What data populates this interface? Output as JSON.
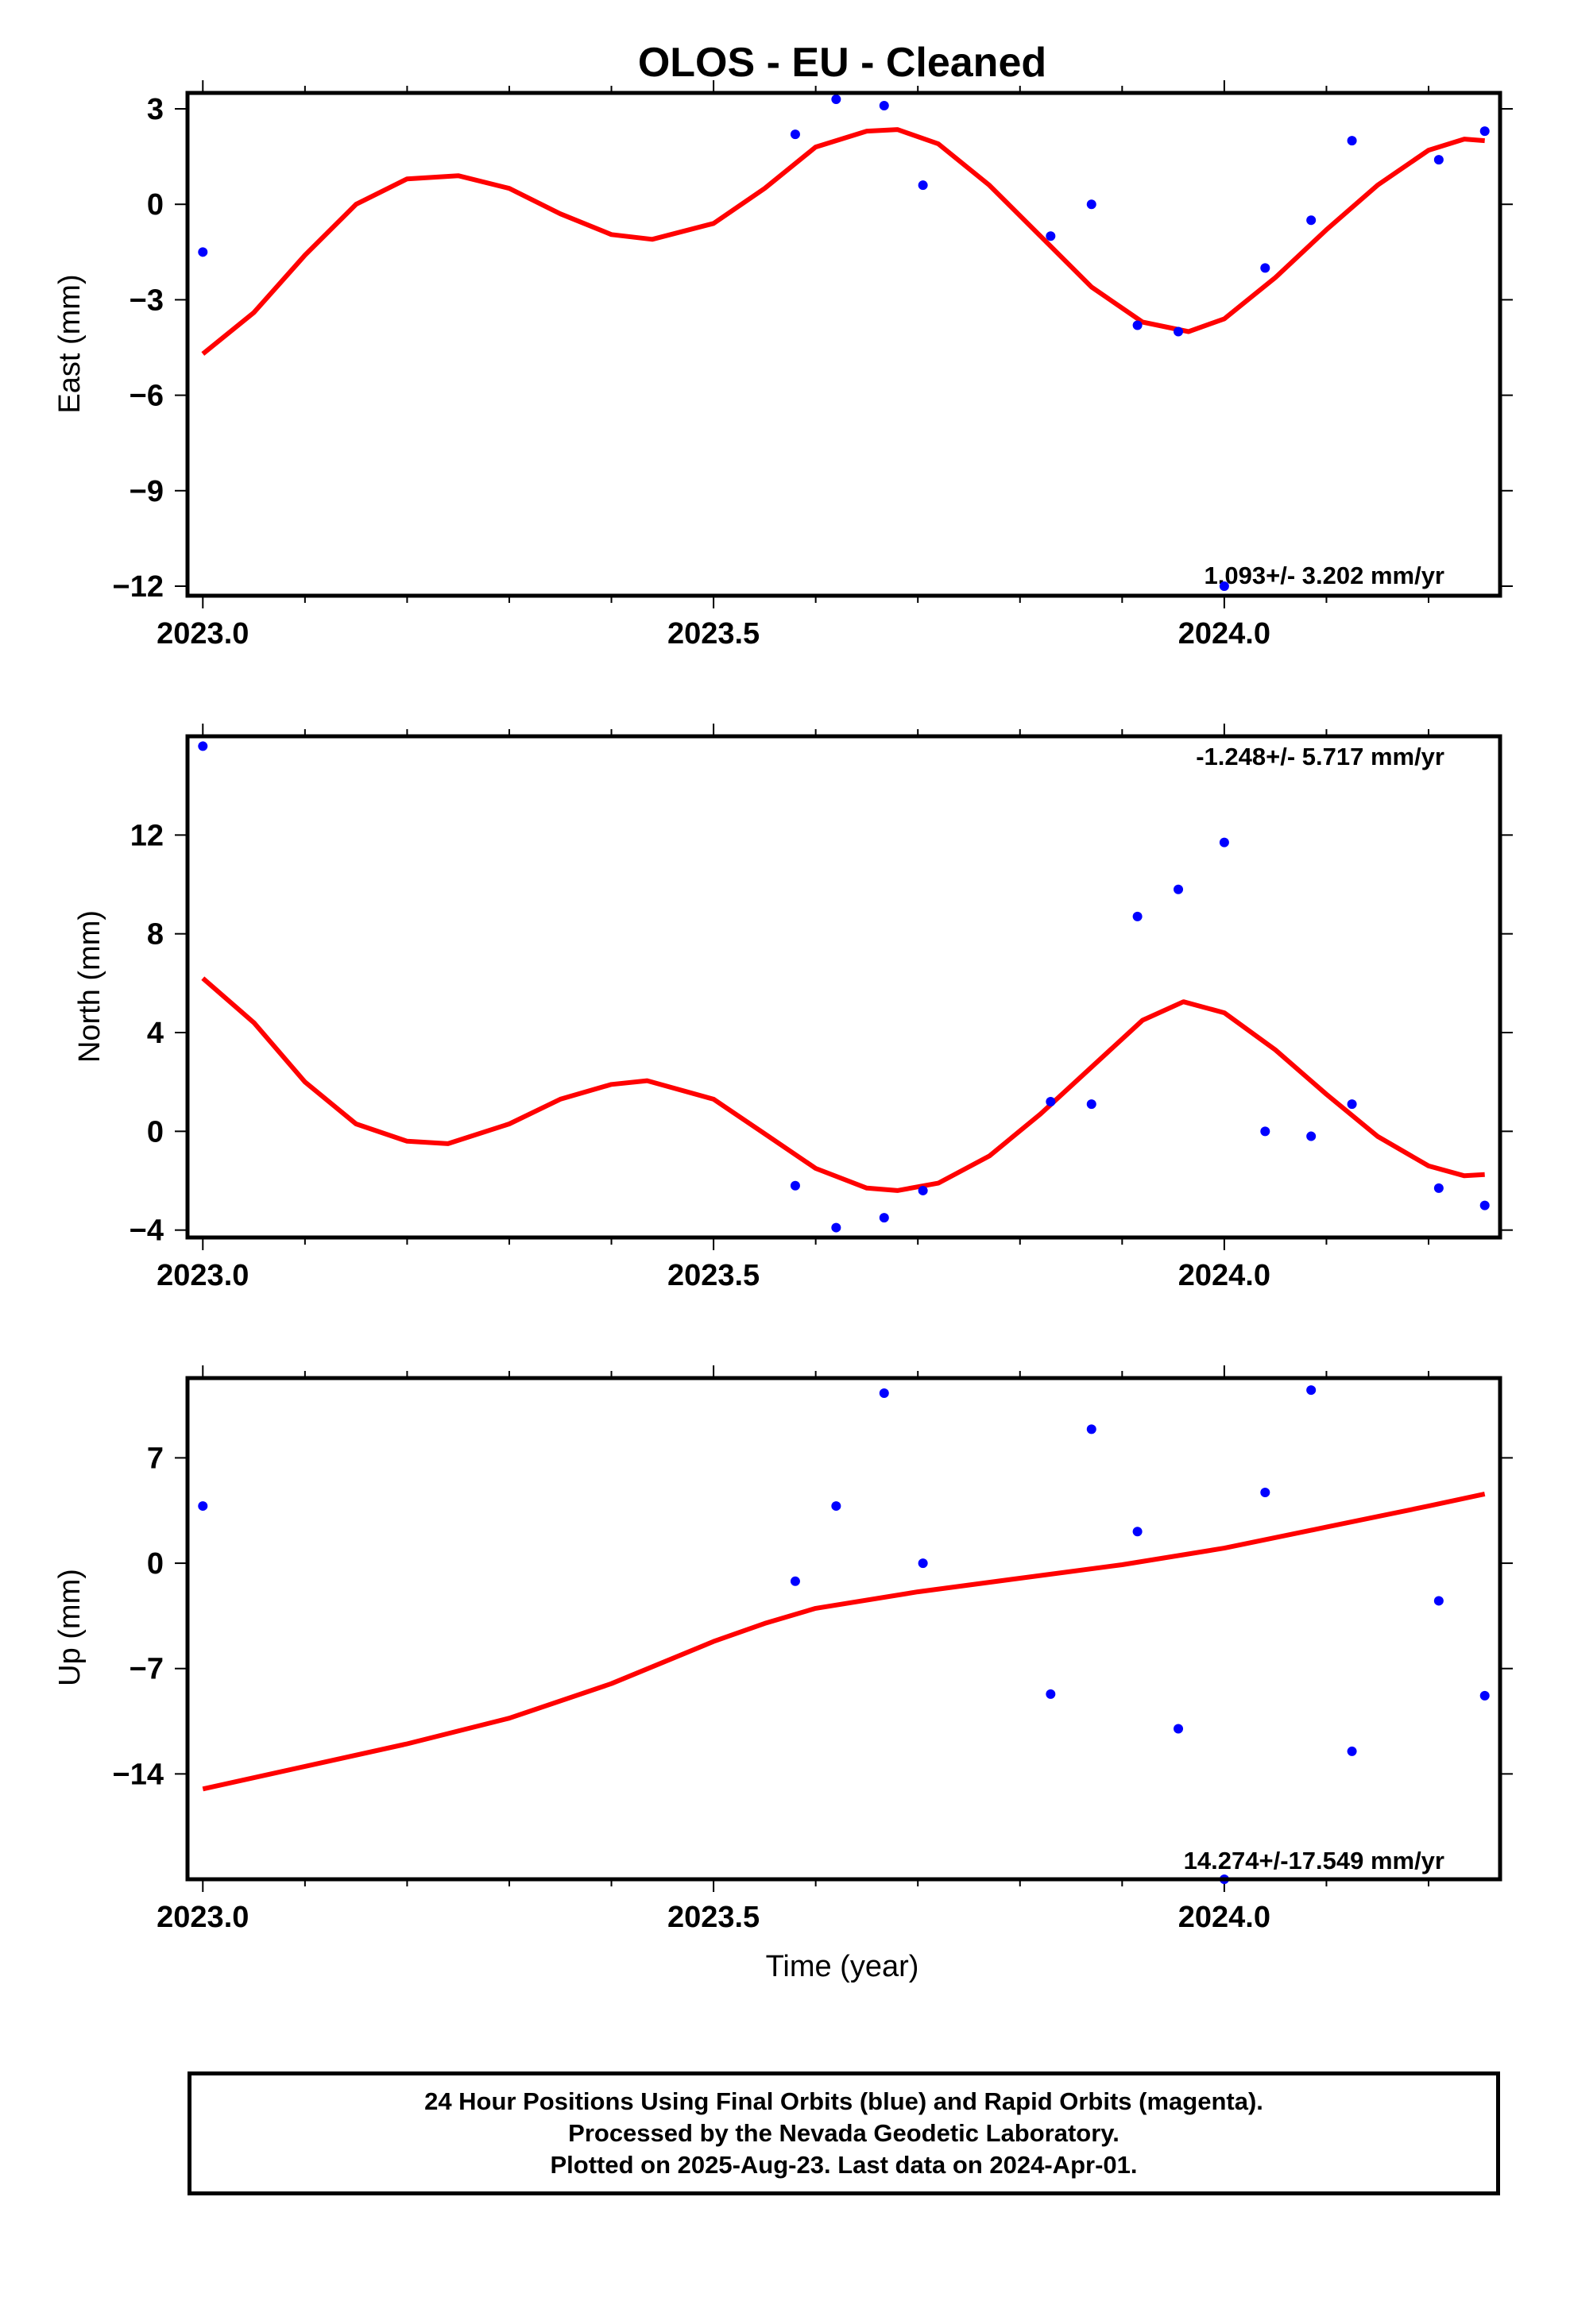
{
  "title": "OLOS  - EU - Cleaned",
  "xlabel": "Time (year)",
  "footer": [
    "24 Hour Positions Using Final Orbits (blue) and Rapid Orbits (magenta).",
    "Processed by the Nevada Geodetic Laboratory.",
    "Plotted on 2025-Aug-23. Last data on 2024-Apr-01."
  ],
  "colors": {
    "points": "#0000ff",
    "fit": "#ff0000",
    "frame": "#000000"
  },
  "chart_data": [
    {
      "type": "scatter",
      "ylabel": "East (mm)",
      "rate_label": "1.093+/- 3.202 mm/yr",
      "xlim": [
        2022.985,
        2024.27
      ],
      "ylim": [
        -12.3,
        3.5
      ],
      "xticks": [
        2023.0,
        2023.5,
        2024.0
      ],
      "xticklabels": [
        "2023.0",
        "2023.5",
        "2024.0"
      ],
      "yticks": [
        3,
        0,
        -3,
        -6,
        -9,
        -12
      ],
      "yticklabels": [
        "3",
        "0",
        "−3",
        "−6",
        "−9",
        "−12"
      ],
      "points": [
        [
          2023.0,
          -1.5
        ],
        [
          2023.58,
          2.2
        ],
        [
          2023.62,
          3.3
        ],
        [
          2023.667,
          3.1
        ],
        [
          2023.705,
          0.6
        ],
        [
          2023.83,
          -1.0
        ],
        [
          2023.87,
          0.0
        ],
        [
          2023.915,
          -3.8
        ],
        [
          2023.955,
          -4.0
        ],
        [
          2024.0,
          -12.0
        ],
        [
          2024.04,
          -2.0
        ],
        [
          2024.085,
          -0.5
        ],
        [
          2024.125,
          2.0
        ],
        [
          2024.21,
          1.4
        ],
        [
          2024.255,
          2.3
        ]
      ],
      "fit": [
        [
          2023.0,
          -4.7
        ],
        [
          2023.05,
          -3.4
        ],
        [
          2023.1,
          -1.6
        ],
        [
          2023.15,
          0.0
        ],
        [
          2023.2,
          0.8
        ],
        [
          2023.25,
          0.9
        ],
        [
          2023.3,
          0.5
        ],
        [
          2023.35,
          -0.3
        ],
        [
          2023.4,
          -0.95
        ],
        [
          2023.44,
          -1.1
        ],
        [
          2023.5,
          -0.6
        ],
        [
          2023.55,
          0.5
        ],
        [
          2023.6,
          1.8
        ],
        [
          2023.65,
          2.3
        ],
        [
          2023.68,
          2.35
        ],
        [
          2023.72,
          1.9
        ],
        [
          2023.77,
          0.6
        ],
        [
          2023.82,
          -1.0
        ],
        [
          2023.87,
          -2.6
        ],
        [
          2023.92,
          -3.7
        ],
        [
          2023.965,
          -4.0
        ],
        [
          2024.0,
          -3.6
        ],
        [
          2024.05,
          -2.3
        ],
        [
          2024.1,
          -0.8
        ],
        [
          2024.15,
          0.6
        ],
        [
          2024.2,
          1.7
        ],
        [
          2024.235,
          2.05
        ],
        [
          2024.255,
          2.0
        ]
      ]
    },
    {
      "type": "scatter",
      "ylabel": "North (mm)",
      "rate_label": "-1.248+/- 5.717 mm/yr",
      "xlim": [
        2022.985,
        2024.27
      ],
      "ylim": [
        -4.3,
        16.0
      ],
      "xticks": [
        2023.0,
        2023.5,
        2024.0
      ],
      "xticklabels": [
        "2023.0",
        "2023.5",
        "2024.0"
      ],
      "yticks": [
        12,
        8,
        4,
        0,
        -4
      ],
      "yticklabels": [
        "12",
        "8",
        "4",
        "0",
        "−4"
      ],
      "points": [
        [
          2023.0,
          15.6
        ],
        [
          2023.58,
          -2.2
        ],
        [
          2023.62,
          -3.9
        ],
        [
          2023.667,
          -3.5
        ],
        [
          2023.705,
          -2.4
        ],
        [
          2023.83,
          1.2
        ],
        [
          2023.87,
          1.1
        ],
        [
          2023.915,
          8.7
        ],
        [
          2023.955,
          9.8
        ],
        [
          2024.0,
          11.7
        ],
        [
          2024.04,
          0.0
        ],
        [
          2024.085,
          -0.2
        ],
        [
          2024.125,
          1.1
        ],
        [
          2024.21,
          -2.3
        ],
        [
          2024.255,
          -3.0
        ]
      ],
      "fit": [
        [
          2023.0,
          6.2
        ],
        [
          2023.05,
          4.4
        ],
        [
          2023.1,
          2.0
        ],
        [
          2023.15,
          0.3
        ],
        [
          2023.2,
          -0.4
        ],
        [
          2023.24,
          -0.5
        ],
        [
          2023.3,
          0.3
        ],
        [
          2023.35,
          1.3
        ],
        [
          2023.4,
          1.9
        ],
        [
          2023.435,
          2.05
        ],
        [
          2023.5,
          1.3
        ],
        [
          2023.55,
          -0.1
        ],
        [
          2023.6,
          -1.5
        ],
        [
          2023.65,
          -2.3
        ],
        [
          2023.68,
          -2.4
        ],
        [
          2023.72,
          -2.1
        ],
        [
          2023.77,
          -1.0
        ],
        [
          2023.82,
          0.7
        ],
        [
          2023.87,
          2.6
        ],
        [
          2023.92,
          4.5
        ],
        [
          2023.96,
          5.25
        ],
        [
          2024.0,
          4.8
        ],
        [
          2024.05,
          3.3
        ],
        [
          2024.1,
          1.5
        ],
        [
          2024.15,
          -0.2
        ],
        [
          2024.2,
          -1.4
        ],
        [
          2024.235,
          -1.8
        ],
        [
          2024.255,
          -1.75
        ]
      ]
    },
    {
      "type": "scatter",
      "ylabel": "Up (mm)",
      "rate_label": "14.274+/-17.549 mm/yr",
      "xlim": [
        2022.985,
        2024.27
      ],
      "ylim": [
        -21.0,
        12.3
      ],
      "xticks": [
        2023.0,
        2023.5,
        2024.0
      ],
      "xticklabels": [
        "2023.0",
        "2023.5",
        "2024.0"
      ],
      "yticks": [
        7,
        0,
        -7,
        -14
      ],
      "yticklabels": [
        "7",
        "0",
        "−7",
        "−14"
      ],
      "points": [
        [
          2023.0,
          3.8
        ],
        [
          2023.58,
          -1.2
        ],
        [
          2023.62,
          3.8
        ],
        [
          2023.667,
          11.3
        ],
        [
          2023.705,
          0.0
        ],
        [
          2023.83,
          -8.7
        ],
        [
          2023.87,
          8.9
        ],
        [
          2023.915,
          2.1
        ],
        [
          2023.955,
          -11.0
        ],
        [
          2024.0,
          -21.0
        ],
        [
          2024.04,
          4.7
        ],
        [
          2024.085,
          11.5
        ],
        [
          2024.125,
          -12.5
        ],
        [
          2024.21,
          -2.5
        ],
        [
          2024.255,
          -8.8
        ]
      ],
      "fit": [
        [
          2023.0,
          -15.0
        ],
        [
          2023.1,
          -13.5
        ],
        [
          2023.2,
          -12.0
        ],
        [
          2023.3,
          -10.3
        ],
        [
          2023.4,
          -8.0
        ],
        [
          2023.5,
          -5.2
        ],
        [
          2023.55,
          -4.0
        ],
        [
          2023.6,
          -3.0
        ],
        [
          2023.7,
          -1.9
        ],
        [
          2023.8,
          -1.0
        ],
        [
          2023.9,
          -0.1
        ],
        [
          2024.0,
          1.0
        ],
        [
          2024.1,
          2.4
        ],
        [
          2024.2,
          3.8
        ],
        [
          2024.255,
          4.6
        ]
      ]
    }
  ]
}
